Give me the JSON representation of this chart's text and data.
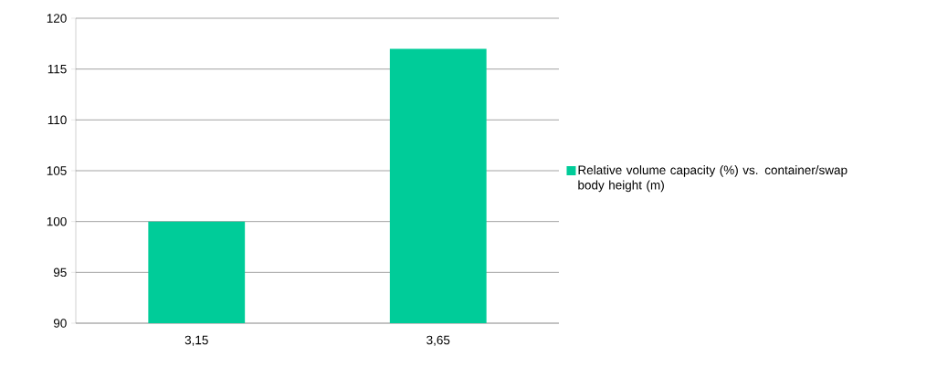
{
  "chart_data": {
    "type": "bar",
    "categories": [
      "3,15",
      "3,65"
    ],
    "series": [
      {
        "name": "Relative volume capacity (%) vs. container/swap body height (m)",
        "color": "#00cc99",
        "values": [
          100,
          117
        ]
      }
    ],
    "ylim": [
      90,
      120
    ],
    "yticks": [
      90,
      95,
      100,
      105,
      110,
      115,
      120
    ],
    "grid": "y",
    "legend": "right"
  }
}
